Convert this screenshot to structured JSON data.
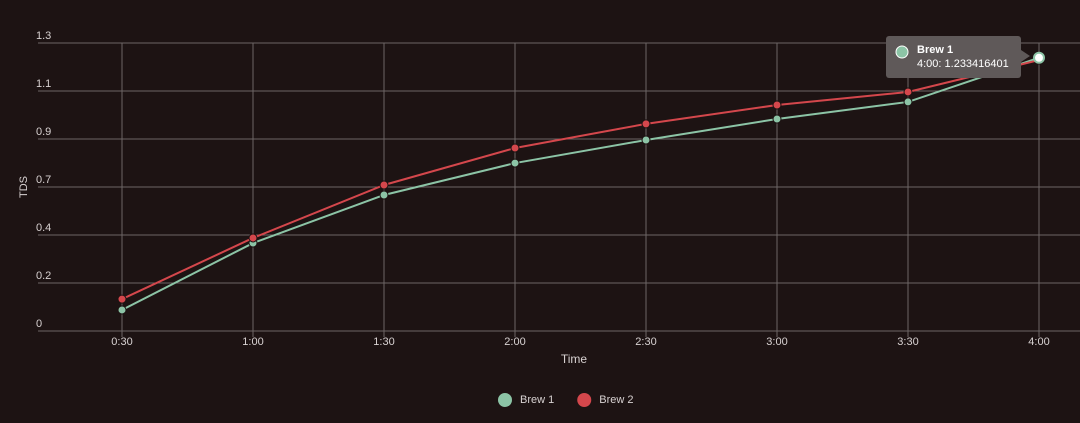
{
  "chart_data": {
    "type": "line",
    "y_label": "TDS",
    "x_label": "Time",
    "categories": [
      "0:30",
      "1:00",
      "1:30",
      "2:00",
      "2:30",
      "3:00",
      "3:30",
      "4:00"
    ],
    "series": [
      {
        "name": "Brew 1",
        "color": "#8cc4a6",
        "values": [
          0.095,
          0.397,
          0.614,
          0.758,
          0.862,
          0.957,
          1.034,
          1.233416401
        ]
      },
      {
        "name": "Brew 2",
        "color": "#d4474c",
        "values": [
          0.144,
          0.42,
          0.659,
          0.826,
          0.935,
          1.02,
          1.079,
          1.223
        ]
      }
    ],
    "ylim": [
      0,
      1.3
    ],
    "yticks": [
      0,
      {
        "value": 0.2167,
        "label": "0.2"
      },
      {
        "value": 0.4333,
        "label": "0.4"
      },
      {
        "value": 0.65,
        "label": "0.7"
      },
      {
        "value": 0.8667,
        "label": "0.9"
      },
      {
        "value": 1.0833,
        "label": "1.1"
      },
      1.3
    ],
    "grid": true,
    "legend": "bottom",
    "tooltip": {
      "title": "Brew 1",
      "text": "4:00: 1.233416401"
    }
  }
}
